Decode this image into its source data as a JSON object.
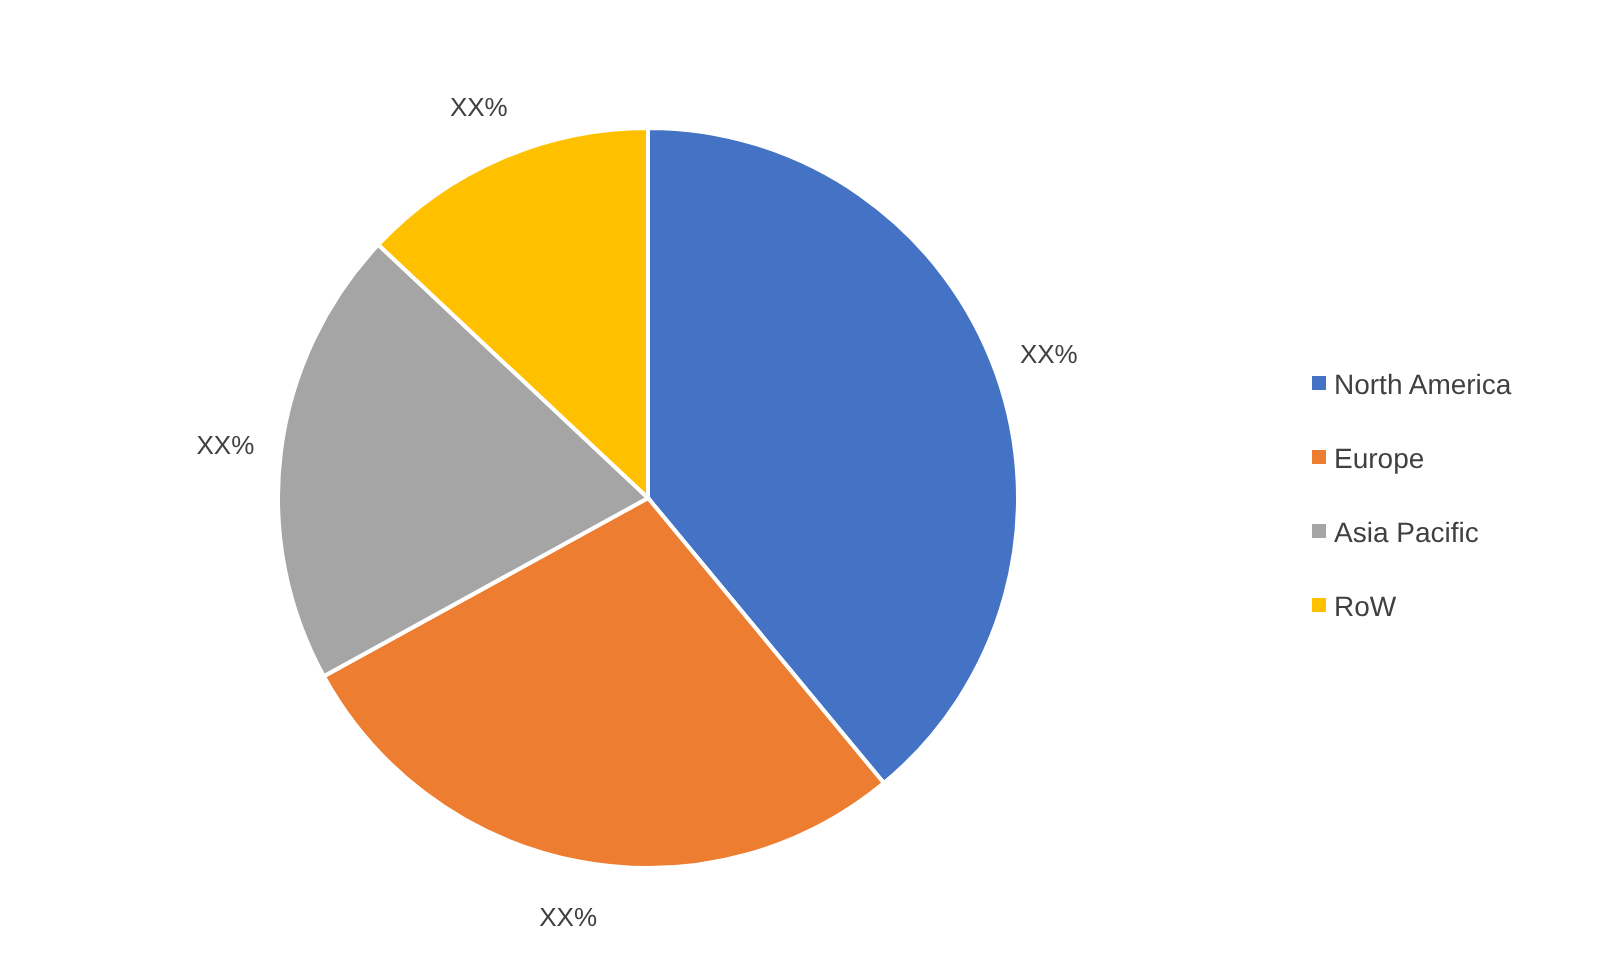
{
  "chart_data": {
    "type": "pie",
    "categories": [
      "North America",
      "Europe",
      "Asia Pacific",
      "RoW"
    ],
    "values": [
      39,
      28,
      20,
      13
    ],
    "colors": [
      "#4472c4",
      "#ed7d31",
      "#a5a5a5",
      "#ffc000"
    ],
    "value_labels": [
      "XX%",
      "XX%",
      "XX%",
      "XX%"
    ],
    "legend": "right"
  }
}
